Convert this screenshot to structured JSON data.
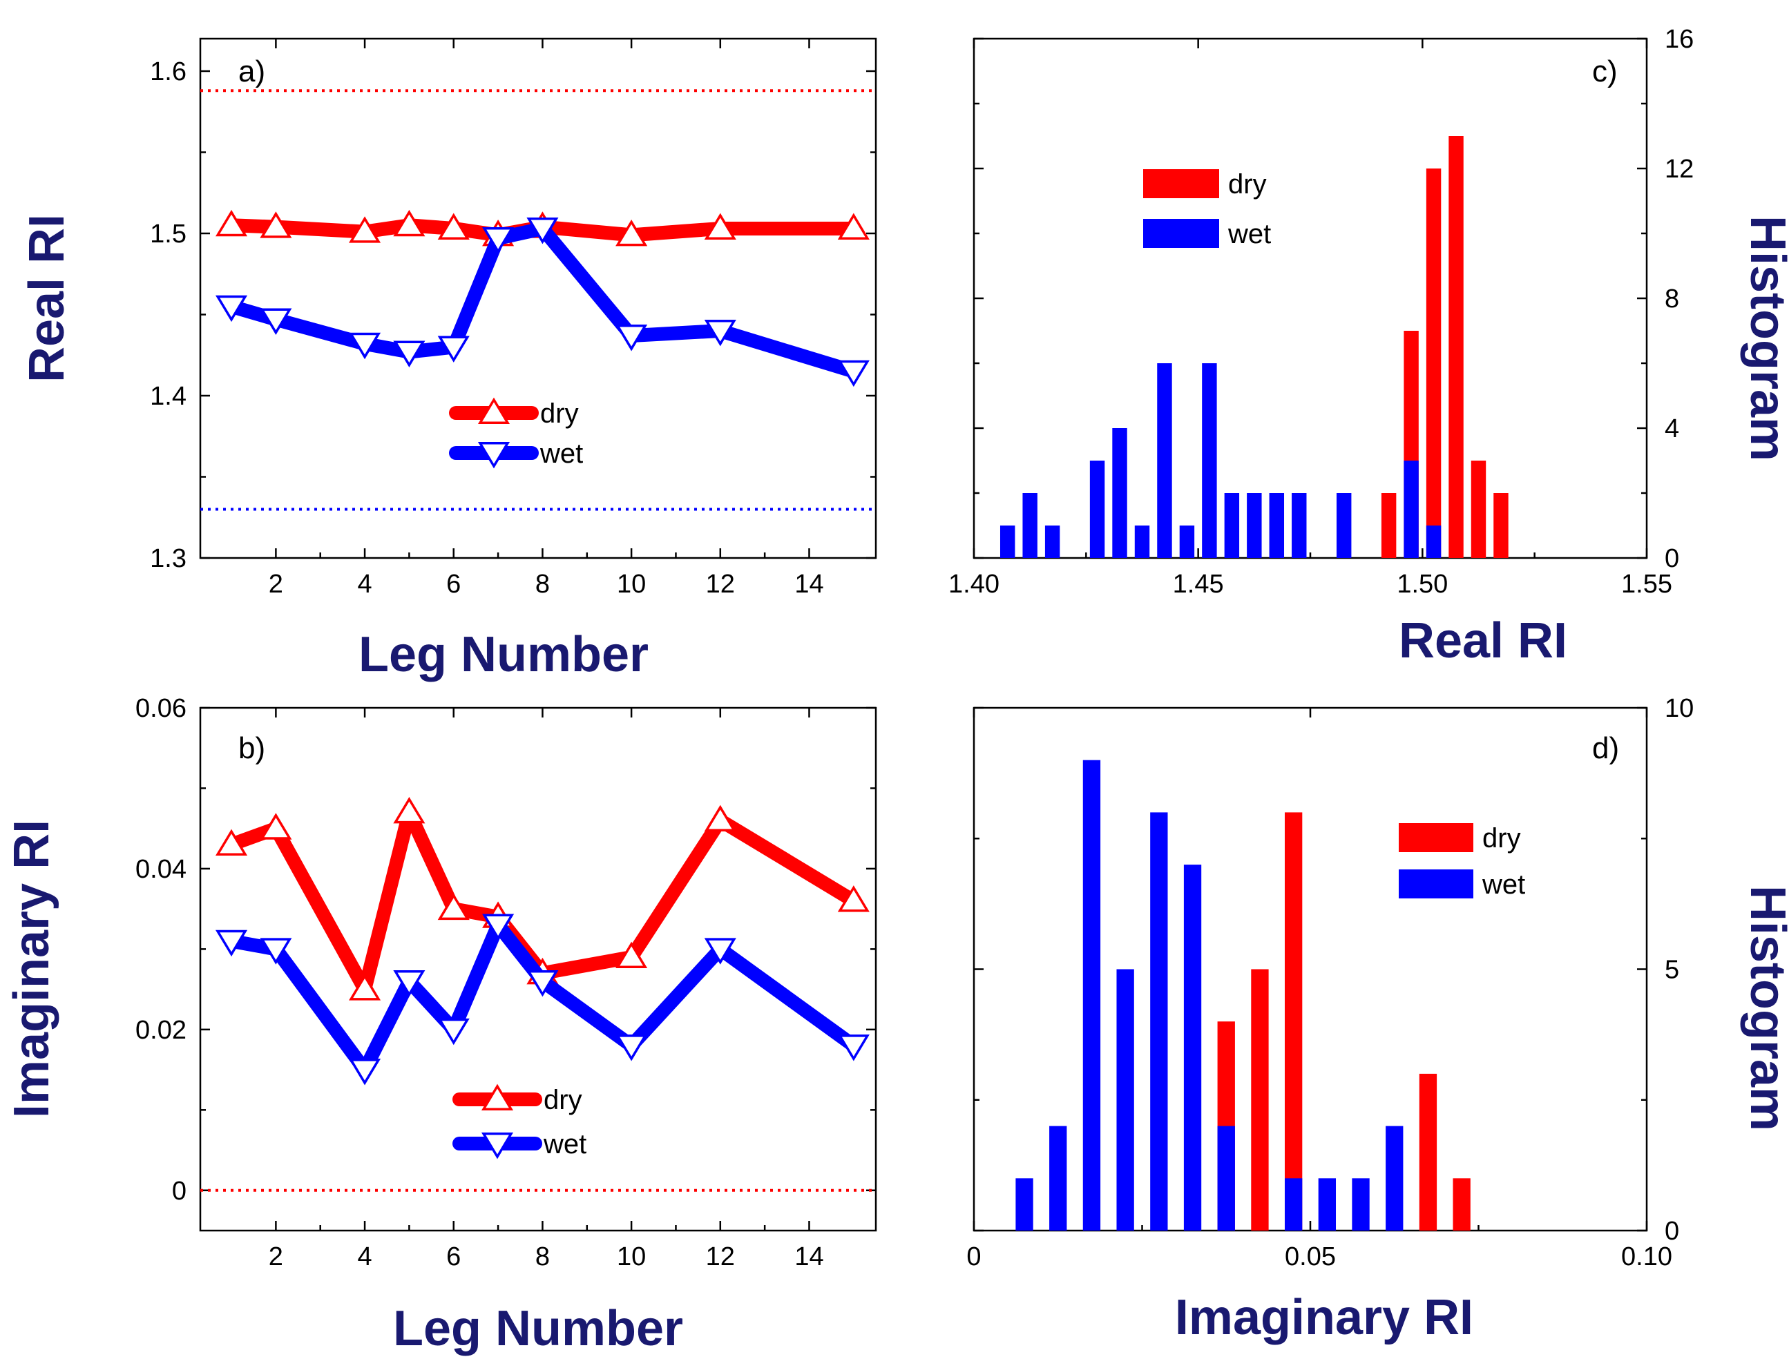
{
  "colors": {
    "dry": "#ff0000",
    "wet": "#0000ff",
    "title": "#191970"
  },
  "chart_data": [
    {
      "id": "a",
      "type": "line",
      "panel_label": "a)",
      "xlabel": "Leg Number",
      "ylabel": "Real RI",
      "xlim": [
        0.3,
        15.5
      ],
      "ylim": [
        1.3,
        1.62
      ],
      "xticks": [
        2,
        4,
        6,
        8,
        10,
        12,
        14
      ],
      "xtick_labels": [
        "2",
        "4",
        "6",
        "8",
        "10",
        "12",
        "14"
      ],
      "yticks": [
        1.3,
        1.4,
        1.5,
        1.6
      ],
      "ytick_labels": [
        "1.3",
        "1.4",
        "1.5",
        "1.6"
      ],
      "x": [
        1,
        2,
        4,
        5,
        6,
        7,
        8,
        10,
        12,
        15
      ],
      "series": [
        {
          "name": "dry",
          "values": [
            1.505,
            1.504,
            1.501,
            1.505,
            1.503,
            1.499,
            1.504,
            1.499,
            1.503,
            1.503
          ]
        },
        {
          "name": "wet",
          "values": [
            1.455,
            1.447,
            1.432,
            1.427,
            1.43,
            1.497,
            1.503,
            1.437,
            1.44,
            1.415
          ]
        }
      ],
      "reference_lines": [
        {
          "series": "dry",
          "y": 1.588
        },
        {
          "series": "wet",
          "y": 1.33
        }
      ],
      "legend": [
        "dry",
        "wet"
      ]
    },
    {
      "id": "b",
      "type": "line",
      "panel_label": "b)",
      "xlabel": "Leg Number",
      "ylabel": "Imaginary RI",
      "xlim": [
        0.3,
        15.5
      ],
      "ylim": [
        -0.005,
        0.06
      ],
      "xticks": [
        2,
        4,
        6,
        8,
        10,
        12,
        14
      ],
      "xtick_labels": [
        "2",
        "4",
        "6",
        "8",
        "10",
        "12",
        "14"
      ],
      "yticks": [
        0,
        0.02,
        0.04,
        0.06
      ],
      "ytick_labels": [
        "0",
        "0.02",
        "0.04",
        "0.06"
      ],
      "x": [
        1,
        2,
        4,
        5,
        6,
        7,
        8,
        10,
        12,
        15
      ],
      "series": [
        {
          "name": "dry",
          "values": [
            0.043,
            0.045,
            0.025,
            0.047,
            0.035,
            0.034,
            0.027,
            0.029,
            0.046,
            0.036
          ]
        },
        {
          "name": "wet",
          "values": [
            0.031,
            0.03,
            0.015,
            0.026,
            0.02,
            0.033,
            0.026,
            0.018,
            0.03,
            0.018
          ]
        }
      ],
      "reference_lines": [
        {
          "series": "dry",
          "y": 0
        }
      ],
      "legend": [
        "dry",
        "wet"
      ]
    },
    {
      "id": "c",
      "type": "bar",
      "panel_label": "c)",
      "xlabel": "Real RI",
      "ylabel": "Histogram",
      "xlim": [
        1.4,
        1.55
      ],
      "ylim": [
        0,
        16
      ],
      "xticks": [
        1.4,
        1.45,
        1.5,
        1.55
      ],
      "xtick_labels": [
        "1.40",
        "1.45",
        "1.50",
        "1.55"
      ],
      "yticks": [
        0,
        4,
        8,
        12,
        16
      ],
      "ytick_labels": [
        "0",
        "4",
        "8",
        "12",
        "16"
      ],
      "bar_width": 0.0033,
      "series": [
        {
          "name": "dry",
          "x": [
            1.4925,
            1.4975,
            1.5025,
            1.5075,
            1.5125,
            1.5175
          ],
          "values": [
            2,
            7,
            12,
            13,
            3,
            2
          ]
        },
        {
          "name": "wet",
          "x": [
            1.4075,
            1.4125,
            1.4175,
            1.4275,
            1.4325,
            1.4375,
            1.4425,
            1.4475,
            1.4525,
            1.4575,
            1.4625,
            1.4675,
            1.4725,
            1.4825,
            1.4975,
            1.5025
          ],
          "values": [
            1,
            2,
            1,
            3,
            4,
            1,
            6,
            1,
            6,
            2,
            2,
            2,
            2,
            2,
            3,
            1
          ]
        }
      ],
      "legend": [
        "dry",
        "wet"
      ]
    },
    {
      "id": "d",
      "type": "bar",
      "panel_label": "d)",
      "xlabel": "Imaginary RI",
      "ylabel": "Histogram",
      "xlim": [
        0,
        0.1
      ],
      "ylim": [
        0,
        10
      ],
      "xticks": [
        0,
        0.05,
        0.1
      ],
      "xtick_labels": [
        "0",
        "0.05",
        "0.10"
      ],
      "yticks": [
        0,
        5,
        10
      ],
      "ytick_labels": [
        "0",
        "5",
        "10"
      ],
      "bar_width": 0.0026,
      "series": [
        {
          "name": "dry",
          "x": [
            0.0375,
            0.0425,
            0.0475,
            0.0675,
            0.0725
          ],
          "values": [
            4,
            5,
            8,
            3,
            1
          ]
        },
        {
          "name": "wet",
          "x": [
            0.0075,
            0.0125,
            0.0175,
            0.0225,
            0.0275,
            0.0325,
            0.0375,
            0.0475,
            0.0525,
            0.0575,
            0.0625
          ],
          "values": [
            1,
            2,
            9,
            5,
            8,
            7,
            2,
            1,
            1,
            1,
            2
          ]
        }
      ],
      "legend": [
        "dry",
        "wet"
      ]
    }
  ]
}
